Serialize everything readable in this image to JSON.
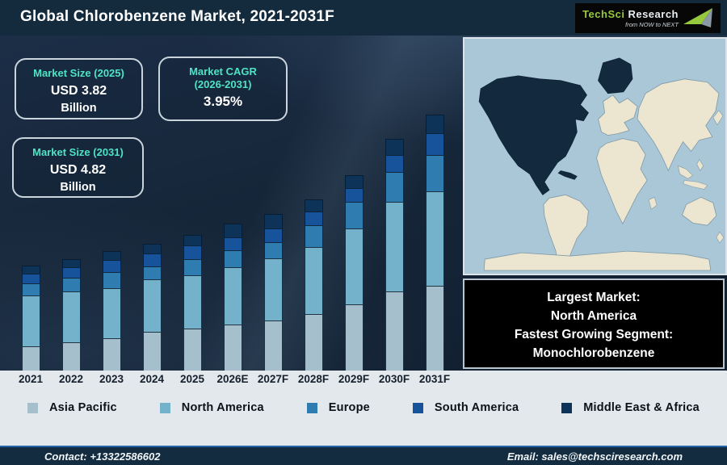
{
  "header": {
    "title": "Global Chlorobenzene Market, 2021-2031F",
    "logo": {
      "brand_primary": "TechSci",
      "brand_secondary": "Research",
      "tagline": "from NOW to NEXT",
      "brand_green": "#97c93d"
    }
  },
  "stats": [
    {
      "label": "Market Size (2025)",
      "label2": "",
      "value": "USD 3.82",
      "unit": "Billion"
    },
    {
      "label": "Market CAGR",
      "label2": "(2026-2031)",
      "value": "3.95%",
      "unit": ""
    },
    {
      "label": "Market Size (2031)",
      "label2": "",
      "value": "USD 4.82",
      "unit": "Billion"
    }
  ],
  "chart_data": {
    "type": "bar",
    "stacked": true,
    "title": "Global Chlorobenzene Market, 2021-2031F",
    "categories": [
      "2021",
      "2022",
      "2023",
      "2024",
      "2025",
      "2026E",
      "2027F",
      "2028F",
      "2029F",
      "2030F",
      "2031F"
    ],
    "series": [
      {
        "name": "Asia Pacific",
        "color": "#a6bfcc",
        "values": [
          30,
          35,
          40,
          48,
          52,
          57,
          62,
          70,
          82,
          98,
          105
        ]
      },
      {
        "name": "North America",
        "color": "#74b2cc",
        "values": [
          63,
          63,
          62,
          65,
          66,
          71,
          77,
          83,
          94,
          111,
          117
        ]
      },
      {
        "name": "Europe",
        "color": "#2e7cb0",
        "values": [
          15,
          17,
          20,
          16,
          20,
          21,
          20,
          27,
          33,
          37,
          45
        ]
      },
      {
        "name": "South America",
        "color": "#17539b",
        "values": [
          12,
          13,
          15,
          16,
          17,
          16,
          17,
          17,
          17,
          21,
          27
        ]
      },
      {
        "name": "Middle East & Africa",
        "color": "#0d3458",
        "values": [
          10,
          10,
          11,
          12,
          13,
          17,
          18,
          15,
          16,
          20,
          23
        ]
      }
    ],
    "ylabel": "",
    "xlabel": "",
    "value_units": "relative bar height (no y-axis shown)",
    "grid": false,
    "legend_position": "bottom",
    "stack_order": "bottom-to-top as listed",
    "totals_reference": {
      "2025": "USD 3.82 Billion",
      "2031": "USD 4.82 Billion"
    }
  },
  "map": {
    "highlighted_region": "North America",
    "highlight_color": "#13293e",
    "ocean_color": "#a9c7d7",
    "land_color": "#ece5cf"
  },
  "info_box": {
    "line1": "Largest Market:",
    "line2": "North America",
    "line3": "Fastest Growing Segment:",
    "line4": "Monochlorobenzene"
  },
  "footer": {
    "contact": "Contact: +13322586602",
    "email": "Email: sales@techsciresearch.com"
  },
  "colors": {
    "accent_teal": "#4ee3c6",
    "header_bg": "#132b3d",
    "chart_bg": "#16273a",
    "strip_bg": "#e2e8ec",
    "footer_line": "#2263a8"
  }
}
